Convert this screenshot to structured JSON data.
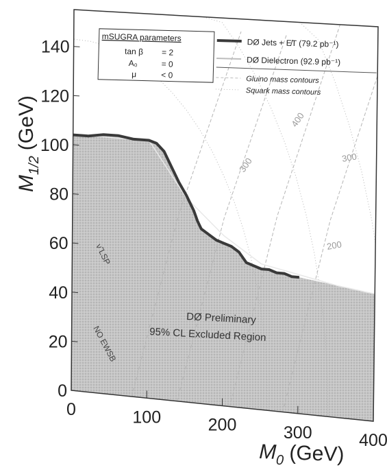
{
  "chart_data": {
    "type": "area",
    "xlabel": "M",
    "xlabel_sub": "0",
    "xlabel_unit": "(GeV)",
    "ylabel": "M",
    "ylabel_sub": "1/2",
    "ylabel_unit": "(GeV)",
    "xlim": [
      0,
      400
    ],
    "ylim": [
      0,
      155
    ],
    "x_ticks": [
      "0",
      "100",
      "200",
      "300",
      "400"
    ],
    "y_ticks": [
      "0",
      "20",
      "40",
      "60",
      "80",
      "100",
      "120",
      "140"
    ],
    "params_box": {
      "title": "mSUGRA parameters",
      "lines": [
        {
          "name": "tan β",
          "value": "= 2"
        },
        {
          "name": "A₀",
          "value": "= 0"
        },
        {
          "name": "μ",
          "value": "< 0"
        }
      ]
    },
    "legend": [
      {
        "label": "DØ Jets + E̸T (79.2 pb⁻¹)",
        "style": "thick"
      },
      {
        "label": "DØ Dielectron (92.9 pb⁻¹)",
        "style": "thin"
      },
      {
        "label": "Gluino mass contours",
        "style": "dashed"
      },
      {
        "label": "Squark mass contours",
        "style": "dotted"
      }
    ],
    "series": [
      {
        "name": "DØ Jets + E̸T (79.2 pb⁻¹)",
        "x": [
          0,
          20,
          40,
          60,
          80,
          100,
          110,
          120,
          130,
          140,
          150,
          160,
          165,
          170,
          180,
          190,
          200,
          210,
          220,
          230,
          240,
          250,
          260,
          270,
          280,
          290,
          300
        ],
        "y": [
          104,
          104,
          105,
          105,
          104,
          104,
          103,
          100,
          94,
          88,
          83,
          77,
          73,
          70,
          68,
          66,
          65,
          64,
          62,
          58,
          57,
          56,
          56,
          55,
          55,
          54,
          54
        ]
      },
      {
        "name": "DØ Dielectron (92.9 pb⁻¹)",
        "x": [
          0,
          100,
          150,
          200,
          250,
          300,
          350,
          400
        ],
        "y": [
          104,
          104,
          82,
          68,
          58,
          55,
          52,
          50
        ]
      }
    ],
    "contour_labels": [
      "400",
      "300",
      "300",
      "200"
    ],
    "region_labels": [
      "ν̃ LSP",
      "NO EWSB"
    ],
    "annotation": [
      "DØ Preliminary",
      "95% CL Excluded Region"
    ],
    "colors": {
      "excluded": "#cbcbcb",
      "contour": "#b5b5b5",
      "curve": "#3a3a3a"
    }
  }
}
